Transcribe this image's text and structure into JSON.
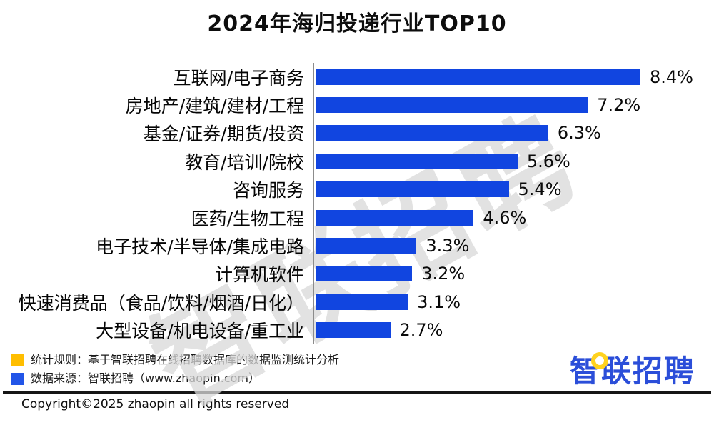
{
  "title": "2024年海归投递行业TOP10",
  "watermark": "智联招聘",
  "chart_data": {
    "type": "bar",
    "orientation": "horizontal",
    "title": "2024年海归投递行业TOP10",
    "categories": [
      "互联网/电子商务",
      "房地产/建筑/建材/工程",
      "基金/证券/期货/投资",
      "教育/培训/院校",
      "咨询服务",
      "医药/生物工程",
      "电子技术/半导体/集成电路",
      "计算机软件",
      "快速消费品（食品/饮料/烟酒/日化）",
      "大型设备/机电设备/重工业"
    ],
    "values": [
      8.4,
      7.2,
      6.3,
      5.6,
      5.4,
      4.6,
      3.3,
      3.2,
      3.1,
      2.7
    ],
    "value_labels": [
      "8.4%",
      "7.2%",
      "6.3%",
      "5.6%",
      "5.4%",
      "4.6%",
      "3.3%",
      "3.2%",
      "3.1%",
      "2.7%"
    ],
    "xlabel": "",
    "ylabel": "",
    "xlim": [
      1.0,
      8.4
    ],
    "grid": false,
    "legend_position": "none",
    "bar_color": "#1145e0",
    "axis_line_color": "#8c8c8c",
    "value_label_position": "end-of-bar"
  },
  "footer": {
    "notes": [
      {
        "color": "#ffbe00",
        "text": "统计规则：基于智联招聘在线招聘数据库的数据监测统计分析"
      },
      {
        "color": "#2255e8",
        "text": "数据来源：智联招聘（www.zhaopin.com）"
      }
    ],
    "logo_text": "智联招聘",
    "copyright": "Copyright©2025 zhaopin all rights reserved"
  }
}
